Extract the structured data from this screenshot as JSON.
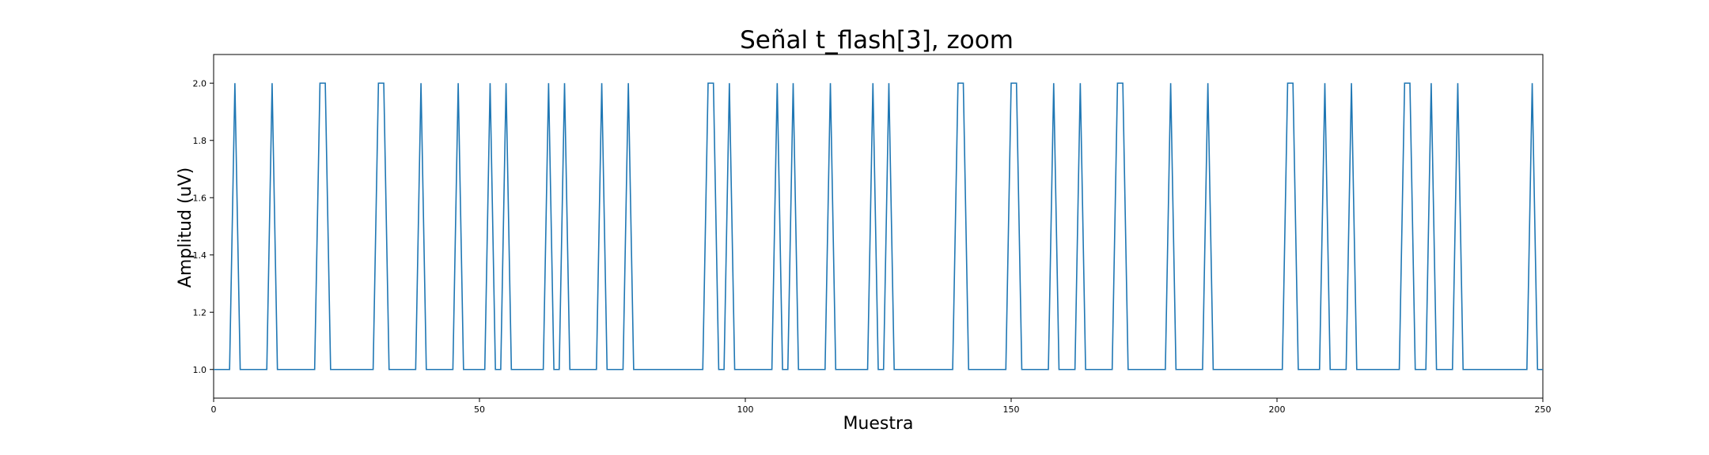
{
  "chart_data": {
    "type": "line",
    "title": "Señal t_flash[3], zoom",
    "xlabel": "Muestra",
    "ylabel": "Amplitud (uV)",
    "xlim": [
      0,
      250
    ],
    "ylim": [
      0.9,
      2.1
    ],
    "xticks": [
      0,
      50,
      100,
      150,
      200,
      250
    ],
    "xtick_labels": [
      "0",
      "50",
      "100",
      "150",
      "200",
      "250"
    ],
    "yticks": [
      1.0,
      1.2,
      1.4,
      1.6,
      1.8,
      2.0
    ],
    "ytick_labels": [
      "1.0",
      "1.2",
      "1.4",
      "1.6",
      "1.8",
      "2.0"
    ],
    "grid": false,
    "series": [
      {
        "color": "#1f77b4",
        "high_samples": [
          4,
          11,
          20,
          21,
          31,
          32,
          39,
          46,
          52,
          55,
          63,
          66,
          73,
          78,
          93,
          94,
          97,
          106,
          109,
          116,
          124,
          127,
          140,
          141,
          150,
          151,
          158,
          163,
          170,
          171,
          180,
          187,
          202,
          203,
          209,
          214,
          224,
          225,
          229,
          234,
          248
        ],
        "x": [],
        "values": []
      }
    ]
  }
}
